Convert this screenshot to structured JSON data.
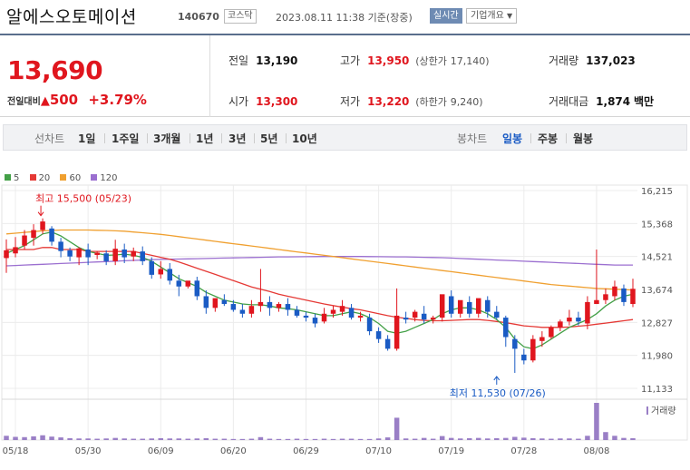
{
  "header": {
    "name": "알에스오토메이션",
    "code": "140670",
    "market": "코스닥",
    "datetime": "2023.08.11 11:38 기준(장중)",
    "realtime": "실시간",
    "company_info": "기업개요",
    "company_arrow": "▼"
  },
  "summary": {
    "price": "13,690",
    "change_label": "전일대비",
    "change_arrow": "▲",
    "change": "500",
    "change_pct": "+3.79%",
    "prev_close_label": "전일",
    "prev_close": "13,190",
    "high_label": "고가",
    "high": "13,950",
    "upper_limit_label": "(상한가",
    "upper_limit": "17,140)",
    "volume_label": "거래량",
    "volume": "137,023",
    "open_label": "시가",
    "open": "13,300",
    "low_label": "저가",
    "low": "13,220",
    "lower_limit_label": "(하한가",
    "lower_limit": "9,240)",
    "amount_label": "거래대금",
    "amount": "1,874",
    "amount_unit": "백만"
  },
  "tabs": {
    "line_chart": "선차트",
    "periods": [
      "1일",
      "1주일",
      "3개월",
      "1년",
      "3년",
      "5년",
      "10년"
    ],
    "candle_chart": "봉차트",
    "candle_periods": [
      "일봉",
      "주봉",
      "월봉"
    ],
    "active_candle": "일봉"
  },
  "colors": {
    "up": "#e0161e",
    "down": "#1a5bc4",
    "ma5": "#43a047",
    "ma20": "#e53935",
    "ma60": "#f0a030",
    "ma120": "#9b6fd0",
    "volume": "#9a7fc6"
  },
  "chart_data": {
    "type": "candlestick",
    "legend": [
      "5",
      "20",
      "60",
      "120"
    ],
    "y_ticks": [
      16215,
      15368,
      14521,
      13674,
      12827,
      11980,
      11133
    ],
    "ylim": [
      11133,
      16215
    ],
    "x_tick_labels": [
      "05/18",
      "05/30",
      "06/09",
      "06/20",
      "06/29",
      "07/10",
      "07/19",
      "07/28",
      "08/08"
    ],
    "x_tick_index": [
      1,
      9,
      17,
      25,
      33,
      41,
      49,
      57,
      65
    ],
    "volume_label": "거래량",
    "max_annotation": {
      "text": "최고 15,500 (05/23)",
      "index": 4,
      "value": 15500
    },
    "min_annotation": {
      "text": "최저 11,530 (07/26)",
      "index": 54,
      "value": 11530
    },
    "candles": [
      [
        14480,
        14960,
        14680,
        14100
      ],
      [
        14600,
        15020,
        14760,
        14500
      ],
      [
        14800,
        15200,
        15060,
        14700
      ],
      [
        15000,
        15350,
        15200,
        14800
      ],
      [
        15200,
        15500,
        15420,
        15100
      ],
      [
        15240,
        15300,
        14900,
        14800
      ],
      [
        14900,
        15000,
        14660,
        14500
      ],
      [
        14680,
        14750,
        14520,
        14400
      ],
      [
        14500,
        14760,
        14730,
        14300
      ],
      [
        14700,
        14850,
        14500,
        14300
      ],
      [
        14560,
        14650,
        14620,
        14450
      ],
      [
        14600,
        14680,
        14400,
        14300
      ],
      [
        14400,
        14950,
        14720,
        14300
      ],
      [
        14700,
        14850,
        14500,
        14350
      ],
      [
        14520,
        14750,
        14660,
        14400
      ],
      [
        14650,
        14780,
        14400,
        14300
      ],
      [
        14400,
        14500,
        14050,
        13950
      ],
      [
        14060,
        14400,
        14200,
        13950
      ],
      [
        14200,
        14350,
        13900,
        13800
      ],
      [
        13900,
        14050,
        13750,
        13500
      ],
      [
        13750,
        13850,
        13900,
        13700
      ],
      [
        13900,
        14000,
        13500,
        13400
      ],
      [
        13500,
        13650,
        13200,
        13050
      ],
      [
        13200,
        13300,
        13450,
        13100
      ],
      [
        13400,
        13550,
        13300,
        13250
      ],
      [
        13300,
        13400,
        13150,
        13100
      ],
      [
        13150,
        13300,
        13050,
        12950
      ],
      [
        13050,
        13400,
        13250,
        12950
      ],
      [
        13250,
        14200,
        13350,
        13100
      ],
      [
        13350,
        13500,
        13200,
        13000
      ],
      [
        13200,
        13350,
        13300,
        13100
      ],
      [
        13300,
        13450,
        13150,
        13000
      ],
      [
        13150,
        13250,
        13000,
        12950
      ],
      [
        13000,
        13100,
        12950,
        12850
      ],
      [
        12950,
        13050,
        12800,
        12700
      ],
      [
        12850,
        13200,
        13050,
        12800
      ],
      [
        13050,
        13250,
        13150,
        12950
      ],
      [
        13100,
        13400,
        13250,
        13000
      ],
      [
        13200,
        13300,
        12950,
        12900
      ],
      [
        12950,
        13100,
        13000,
        12850
      ],
      [
        12950,
        13050,
        12600,
        12500
      ],
      [
        12600,
        12700,
        12400,
        12300
      ],
      [
        12400,
        12500,
        12150,
        12100
      ],
      [
        12150,
        13700,
        13000,
        12100
      ],
      [
        12950,
        13100,
        12900,
        12800
      ],
      [
        12950,
        13150,
        13100,
        12850
      ],
      [
        13050,
        13250,
        12900,
        12800
      ],
      [
        12900,
        13000,
        12950,
        12800
      ],
      [
        12950,
        13150,
        13550,
        12850
      ],
      [
        13500,
        13650,
        13050,
        12950
      ],
      [
        13050,
        13300,
        13400,
        12950
      ],
      [
        13350,
        13500,
        13050,
        12950
      ],
      [
        13050,
        13300,
        13450,
        12950
      ],
      [
        13400,
        13500,
        13100,
        12950
      ],
      [
        13100,
        13250,
        12950,
        12900
      ],
      [
        12950,
        13000,
        12450,
        12200
      ],
      [
        12400,
        12500,
        12150,
        11530
      ],
      [
        12000,
        12150,
        11850,
        11750
      ],
      [
        11850,
        12500,
        12400,
        11800
      ],
      [
        12350,
        12600,
        12450,
        12200
      ],
      [
        12450,
        12750,
        12700,
        12400
      ],
      [
        12700,
        12900,
        12850,
        12600
      ],
      [
        12850,
        13150,
        12950,
        12750
      ],
      [
        12950,
        13100,
        12850,
        12750
      ],
      [
        12800,
        13500,
        13350,
        12650
      ],
      [
        13300,
        14700,
        13400,
        13300
      ],
      [
        13400,
        13700,
        13550,
        13300
      ],
      [
        13500,
        13900,
        13750,
        13400
      ],
      [
        13700,
        13800,
        13350,
        13250
      ],
      [
        13300,
        13950,
        13690,
        13220
      ]
    ],
    "ma5": [
      14600,
      14700,
      14800,
      14950,
      15100,
      15150,
      15050,
      14900,
      14750,
      14650,
      14600,
      14550,
      14560,
      14580,
      14550,
      14500,
      14400,
      14250,
      14100,
      13950,
      13850,
      13750,
      13600,
      13500,
      13400,
      13350,
      13300,
      13280,
      13280,
      13250,
      13200,
      13180,
      13150,
      13100,
      13050,
      13000,
      13000,
      13050,
      13100,
      13050,
      12950,
      12800,
      12600,
      12550,
      12600,
      12700,
      12800,
      12900,
      13050,
      13150,
      13200,
      13200,
      13150,
      13050,
      12900,
      12700,
      12400,
      12200,
      12150,
      12250,
      12400,
      12550,
      12700,
      12800,
      12900,
      13050,
      13250,
      13400,
      13500,
      13550
    ],
    "ma20": [
      14700,
      14700,
      14700,
      14700,
      14750,
      14750,
      14700,
      14700,
      14700,
      14650,
      14650,
      14650,
      14650,
      14650,
      14650,
      14600,
      14550,
      14500,
      14450,
      14380,
      14300,
      14220,
      14140,
      14060,
      13980,
      13900,
      13820,
      13740,
      13680,
      13620,
      13550,
      13500,
      13450,
      13400,
      13350,
      13300,
      13260,
      13220,
      13180,
      13150,
      13100,
      13050,
      13000,
      12960,
      12930,
      12900,
      12880,
      12870,
      12870,
      12880,
      12890,
      12900,
      12900,
      12880,
      12850,
      12820,
      12780,
      12740,
      12720,
      12700,
      12700,
      12700,
      12710,
      12730,
      12750,
      12780,
      12810,
      12840,
      12870,
      12900
    ],
    "ma60": [
      15100,
      15120,
      15140,
      15160,
      15180,
      15190,
      15200,
      15200,
      15200,
      15200,
      15195,
      15190,
      15180,
      15170,
      15150,
      15130,
      15110,
      15090,
      15060,
      15030,
      15000,
      14970,
      14940,
      14910,
      14880,
      14850,
      14820,
      14790,
      14760,
      14730,
      14700,
      14670,
      14640,
      14610,
      14580,
      14550,
      14520,
      14490,
      14460,
      14430,
      14400,
      14370,
      14340,
      14310,
      14280,
      14250,
      14220,
      14190,
      14160,
      14130,
      14100,
      14070,
      14040,
      14010,
      13980,
      13950,
      13920,
      13890,
      13860,
      13830,
      13800,
      13780,
      13760,
      13740,
      13720,
      13700,
      13690,
      13680,
      13670,
      13660
    ],
    "ma120": [
      14280,
      14290,
      14300,
      14310,
      14320,
      14330,
      14340,
      14350,
      14360,
      14370,
      14380,
      14390,
      14400,
      14410,
      14420,
      14430,
      14440,
      14445,
      14450,
      14455,
      14460,
      14465,
      14470,
      14475,
      14480,
      14485,
      14490,
      14495,
      14500,
      14505,
      14510,
      14512,
      14514,
      14516,
      14518,
      14520,
      14521,
      14521,
      14521,
      14520,
      14518,
      14516,
      14514,
      14512,
      14510,
      14505,
      14500,
      14495,
      14490,
      14480,
      14470,
      14460,
      14450,
      14440,
      14430,
      14420,
      14410,
      14400,
      14390,
      14380,
      14370,
      14360,
      14350,
      14340,
      14330,
      14320,
      14310,
      14300,
      14300,
      14300
    ],
    "volumes": [
      80,
      60,
      55,
      70,
      90,
      65,
      50,
      35,
      30,
      30,
      25,
      30,
      40,
      30,
      25,
      25,
      30,
      35,
      30,
      30,
      25,
      30,
      35,
      25,
      25,
      20,
      20,
      25,
      55,
      25,
      20,
      20,
      25,
      20,
      20,
      25,
      20,
      25,
      25,
      20,
      20,
      30,
      50,
      420,
      30,
      25,
      40,
      25,
      75,
      40,
      30,
      35,
      40,
      30,
      35,
      40,
      60,
      45,
      35,
      30,
      25,
      30,
      30,
      25,
      80,
      700,
      150,
      80,
      40,
      35
    ]
  }
}
